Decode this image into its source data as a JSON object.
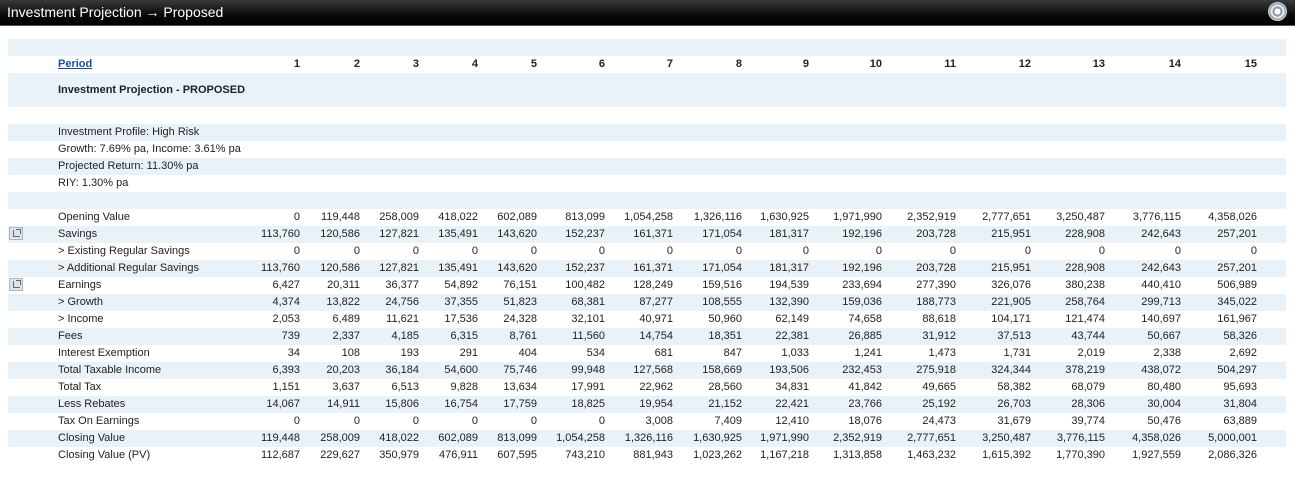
{
  "window": {
    "title": "Investment Projection → Proposed",
    "settings_icon": "gear-icon"
  },
  "period_label": "Period",
  "periods": [
    "1",
    "2",
    "3",
    "4",
    "5",
    "6",
    "7",
    "8",
    "9",
    "10",
    "11",
    "12",
    "13",
    "14",
    "15"
  ],
  "section_title": "Investment Projection - PROPOSED",
  "profile": [
    "Investment Profile: High Risk",
    "Growth: 7.69% pa, Income: 3.61% pa",
    "Projected Return: 11.30% pa",
    "RIY: 1.30% pa"
  ],
  "rows": [
    {
      "label": "Opening Value",
      "values": [
        "0",
        "119,448",
        "258,009",
        "418,022",
        "602,089",
        "813,099",
        "1,054,258",
        "1,326,116",
        "1,630,925",
        "1,971,990",
        "2,352,919",
        "2,777,651",
        "3,250,487",
        "3,776,115",
        "4,358,026"
      ]
    },
    {
      "label": "Savings",
      "expandable": true,
      "values": [
        "113,760",
        "120,586",
        "127,821",
        "135,491",
        "143,620",
        "152,237",
        "161,371",
        "171,054",
        "181,317",
        "192,196",
        "203,728",
        "215,951",
        "228,908",
        "242,643",
        "257,201"
      ]
    },
    {
      "label": "> Existing Regular Savings",
      "values": [
        "0",
        "0",
        "0",
        "0",
        "0",
        "0",
        "0",
        "0",
        "0",
        "0",
        "0",
        "0",
        "0",
        "0",
        "0"
      ]
    },
    {
      "label": "> Additional Regular Savings",
      "values": [
        "113,760",
        "120,586",
        "127,821",
        "135,491",
        "143,620",
        "152,237",
        "161,371",
        "171,054",
        "181,317",
        "192,196",
        "203,728",
        "215,951",
        "228,908",
        "242,643",
        "257,201"
      ]
    },
    {
      "label": "Earnings",
      "expandable": true,
      "values": [
        "6,427",
        "20,311",
        "36,377",
        "54,892",
        "76,151",
        "100,482",
        "128,249",
        "159,516",
        "194,539",
        "233,694",
        "277,390",
        "326,076",
        "380,238",
        "440,410",
        "506,989"
      ]
    },
    {
      "label": "> Growth",
      "values": [
        "4,374",
        "13,822",
        "24,756",
        "37,355",
        "51,823",
        "68,381",
        "87,277",
        "108,555",
        "132,390",
        "159,036",
        "188,773",
        "221,905",
        "258,764",
        "299,713",
        "345,022"
      ]
    },
    {
      "label": "> Income",
      "values": [
        "2,053",
        "6,489",
        "11,621",
        "17,536",
        "24,328",
        "32,101",
        "40,971",
        "50,960",
        "62,149",
        "74,658",
        "88,618",
        "104,171",
        "121,474",
        "140,697",
        "161,967"
      ]
    },
    {
      "label": "Fees",
      "values": [
        "739",
        "2,337",
        "4,185",
        "6,315",
        "8,761",
        "11,560",
        "14,754",
        "18,351",
        "22,381",
        "26,885",
        "31,912",
        "37,513",
        "43,744",
        "50,667",
        "58,326"
      ]
    },
    {
      "label": "Interest Exemption",
      "values": [
        "34",
        "108",
        "193",
        "291",
        "404",
        "534",
        "681",
        "847",
        "1,033",
        "1,241",
        "1,473",
        "1,731",
        "2,019",
        "2,338",
        "2,692"
      ]
    },
    {
      "label": "Total Taxable Income",
      "values": [
        "6,393",
        "20,203",
        "36,184",
        "54,600",
        "75,746",
        "99,948",
        "127,568",
        "158,669",
        "193,506",
        "232,453",
        "275,918",
        "324,344",
        "378,219",
        "438,072",
        "504,297"
      ]
    },
    {
      "label": "Total Tax",
      "values": [
        "1,151",
        "3,637",
        "6,513",
        "9,828",
        "13,634",
        "17,991",
        "22,962",
        "28,560",
        "34,831",
        "41,842",
        "49,665",
        "58,382",
        "68,079",
        "80,480",
        "95,693"
      ]
    },
    {
      "label": "Less Rebates",
      "values": [
        "14,067",
        "14,911",
        "15,806",
        "16,754",
        "17,759",
        "18,825",
        "19,954",
        "21,152",
        "22,421",
        "23,766",
        "25,192",
        "26,703",
        "28,306",
        "30,004",
        "31,804"
      ]
    },
    {
      "label": "Tax On Earnings",
      "values": [
        "0",
        "0",
        "0",
        "0",
        "0",
        "0",
        "3,008",
        "7,409",
        "12,410",
        "18,076",
        "24,473",
        "31,679",
        "39,774",
        "50,476",
        "63,889"
      ]
    },
    {
      "label": "Closing Value",
      "values": [
        "119,448",
        "258,009",
        "418,022",
        "602,089",
        "813,099",
        "1,054,258",
        "1,326,116",
        "1,630,925",
        "1,971,990",
        "2,352,919",
        "2,777,651",
        "3,250,487",
        "3,776,115",
        "4,358,026",
        "5,000,001"
      ]
    },
    {
      "label": "Closing Value (PV)",
      "values": [
        "112,687",
        "229,627",
        "350,979",
        "476,911",
        "607,595",
        "743,210",
        "881,943",
        "1,023,262",
        "1,167,218",
        "1,313,858",
        "1,463,232",
        "1,615,392",
        "1,770,390",
        "1,927,559",
        "2,086,326"
      ]
    }
  ]
}
